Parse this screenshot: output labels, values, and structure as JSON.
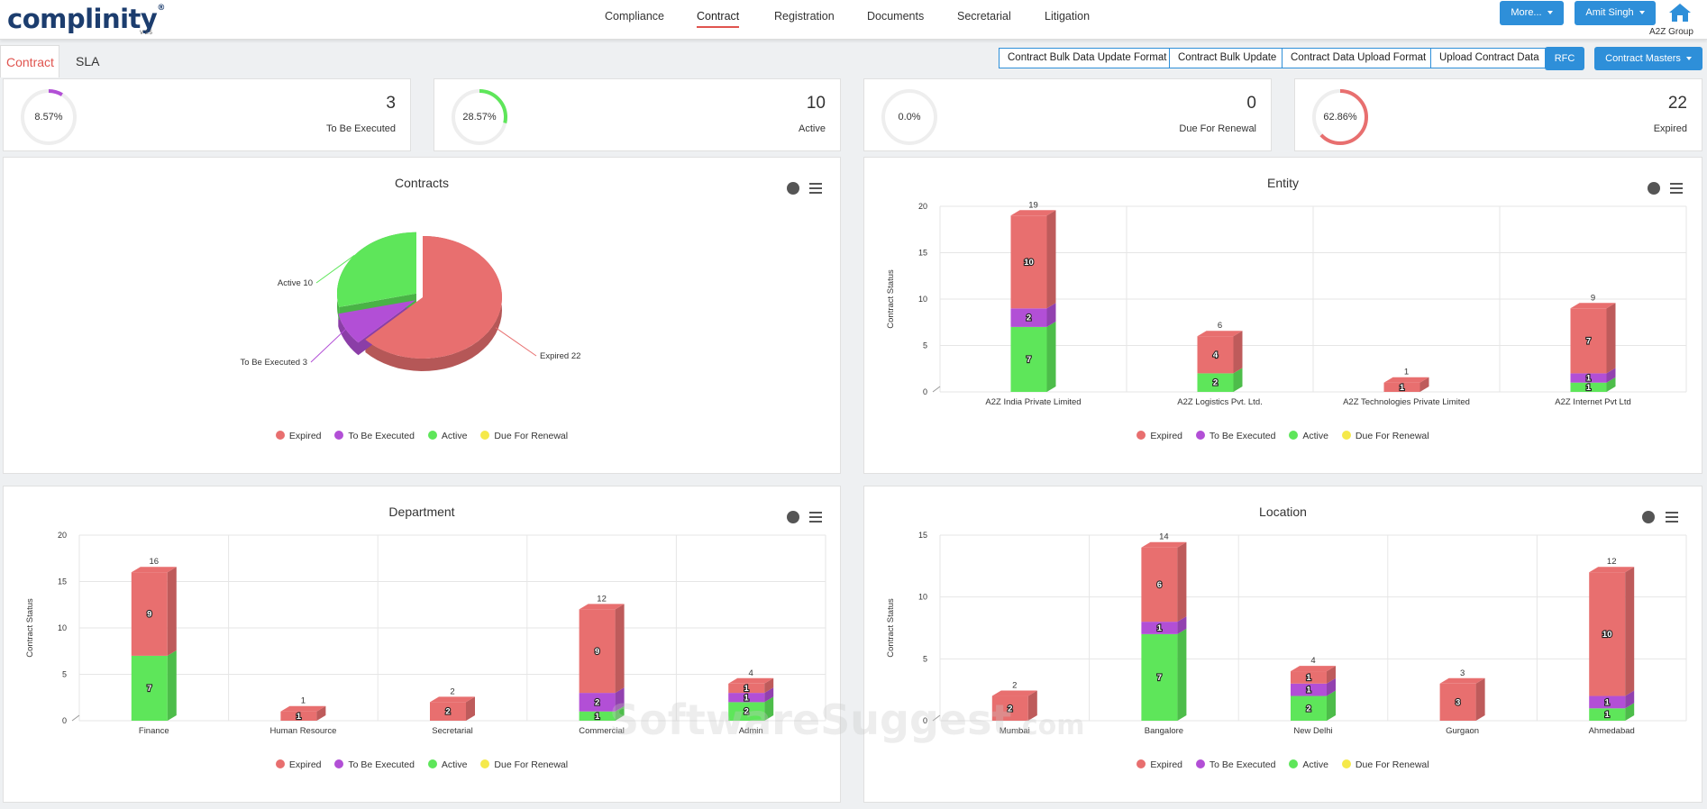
{
  "header": {
    "logo": "complinity",
    "logo_reg": "®",
    "logo_version": "V 2.5",
    "nav": [
      "Compliance",
      "Contract",
      "Registration",
      "Documents",
      "Secretarial",
      "Litigation"
    ],
    "active_nav": "Contract",
    "more_label": "More...",
    "user_label": "Amit Singh",
    "group_name": "A2Z Group"
  },
  "tabs": {
    "contract": "Contract",
    "sla": "SLA"
  },
  "actions": {
    "bulk_data_update_format": "Contract Bulk Data Update Format",
    "bulk_update": "Contract Bulk Update",
    "data_upload_format": "Contract Data Upload Format",
    "upload_data": "Upload Contract Data",
    "rfc": "RFC",
    "masters": "Contract Masters"
  },
  "stats": [
    {
      "percent_label": "8.57%",
      "fraction": 0.0857,
      "value": "3",
      "label": "To Be Executed",
      "color": "#b24fd6"
    },
    {
      "percent_label": "28.57%",
      "fraction": 0.2857,
      "value": "10",
      "label": "Active",
      "color": "#5ee65a"
    },
    {
      "percent_label": "0.0%",
      "fraction": 0,
      "value": "0",
      "label": "Due For Renewal",
      "color": "#f5e94a"
    },
    {
      "percent_label": "62.86%",
      "fraction": 0.6286,
      "value": "22",
      "label": "Expired",
      "color": "#e86f6f"
    }
  ],
  "colors": {
    "expired": "#e86f6f",
    "to_be_executed": "#b24fd6",
    "active": "#5ee65a",
    "due_for_renewal": "#f5e94a"
  },
  "legend": [
    "Expired",
    "To Be Executed",
    "Active",
    "Due For Renewal"
  ],
  "chart_data": [
    {
      "type": "pie",
      "title": "Contracts",
      "slices": [
        {
          "name": "Expired",
          "value": 22,
          "label": "Expired 22"
        },
        {
          "name": "To Be Executed",
          "value": 3,
          "label": "To Be Executed 3"
        },
        {
          "name": "Active",
          "value": 10,
          "label": "Active 10"
        },
        {
          "name": "Due For Renewal",
          "value": 0,
          "label": ""
        }
      ]
    },
    {
      "type": "bar",
      "stacked": true,
      "title": "Entity",
      "ylabel": "Contract Status",
      "ylim": [
        0,
        20
      ],
      "yticks": [
        0,
        5,
        10,
        15,
        20
      ],
      "categories": [
        "A2Z India Private Limited",
        "A2Z Logistics Pvt. Ltd.",
        "A2Z Technologies Private Limited",
        "A2Z Internet Pvt Ltd"
      ],
      "series": [
        {
          "name": "Active",
          "values": [
            7,
            2,
            0,
            1
          ]
        },
        {
          "name": "To Be Executed",
          "values": [
            2,
            0,
            0,
            1
          ]
        },
        {
          "name": "Expired",
          "values": [
            10,
            4,
            1,
            7
          ]
        },
        {
          "name": "Due For Renewal",
          "values": [
            0,
            0,
            0,
            0
          ]
        }
      ],
      "totals": [
        19,
        6,
        1,
        9
      ]
    },
    {
      "type": "bar",
      "stacked": true,
      "title": "Department",
      "ylabel": "Contract Status",
      "ylim": [
        0,
        20
      ],
      "yticks": [
        0,
        5,
        10,
        15,
        20
      ],
      "categories": [
        "Finance",
        "Human Resource",
        "Secretarial",
        "Commercial",
        "Admin"
      ],
      "series": [
        {
          "name": "Active",
          "values": [
            7,
            0,
            0,
            1,
            2
          ]
        },
        {
          "name": "To Be Executed",
          "values": [
            0,
            0,
            0,
            2,
            1
          ]
        },
        {
          "name": "Expired",
          "values": [
            9,
            1,
            2,
            9,
            1
          ]
        },
        {
          "name": "Due For Renewal",
          "values": [
            0,
            0,
            0,
            0,
            0
          ]
        }
      ],
      "totals": [
        16,
        1,
        2,
        12,
        4
      ]
    },
    {
      "type": "bar",
      "stacked": true,
      "title": "Location",
      "ylabel": "Contract Status",
      "ylim": [
        0,
        15
      ],
      "yticks": [
        0,
        5,
        10,
        15
      ],
      "categories": [
        "Mumbai",
        "Bangalore",
        "New Delhi",
        "Gurgaon",
        "Ahmedabad"
      ],
      "series": [
        {
          "name": "Active",
          "values": [
            0,
            7,
            2,
            0,
            1
          ]
        },
        {
          "name": "To Be Executed",
          "values": [
            0,
            1,
            1,
            0,
            1
          ]
        },
        {
          "name": "Expired",
          "values": [
            2,
            6,
            1,
            3,
            10
          ]
        },
        {
          "name": "Due For Renewal",
          "values": [
            0,
            0,
            0,
            0,
            0
          ]
        }
      ],
      "totals": [
        2,
        14,
        4,
        3,
        12
      ]
    }
  ],
  "watermark": {
    "main": "SoftwareSuggest",
    "suffix": ".com"
  }
}
